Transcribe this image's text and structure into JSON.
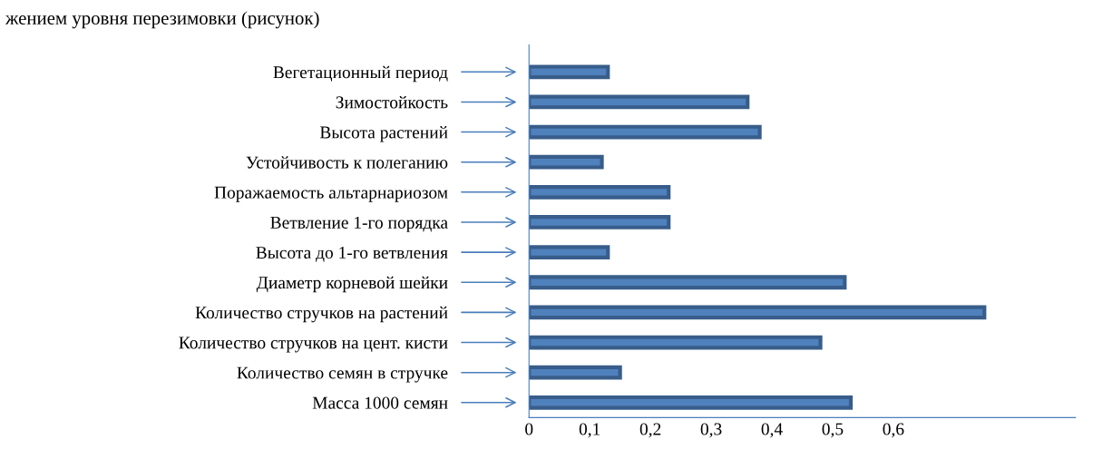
{
  "chart_data": {
    "type": "bar",
    "orientation": "horizontal",
    "title": "жением уровня перезимовки (рисунок)",
    "categories": [
      "Вегетационный период",
      "Зимостойкость",
      "Высота растений",
      "Устойчивость к полеганию",
      "Поражаемость альтарнариозом",
      "Ветвление 1-го порядка",
      "Высота до 1-го ветвления",
      "Диаметр корневой шейки",
      "Количество стручков на растений",
      "Количество стручков на цент. кисти",
      "Количество семян в стручке",
      "Масса 1000 семян"
    ],
    "values": [
      0.13,
      0.36,
      0.38,
      0.12,
      0.23,
      0.23,
      0.13,
      0.52,
      0.75,
      0.48,
      0.15,
      0.53
    ],
    "color": "#4f81bd",
    "xlim": [
      0,
      0.9
    ],
    "xticks": [
      0,
      {
        "value": 0.1,
        "label": "0,1"
      },
      {
        "value": 0.2,
        "label": "0,2"
      },
      {
        "value": 0.3,
        "label": "0,3"
      },
      {
        "value": 0.4,
        "label": "0,4"
      },
      {
        "value": 0.5,
        "label": "0,5"
      },
      {
        "value": 0.6,
        "label": "0,6"
      }
    ],
    "grid": false,
    "legend": false
  }
}
